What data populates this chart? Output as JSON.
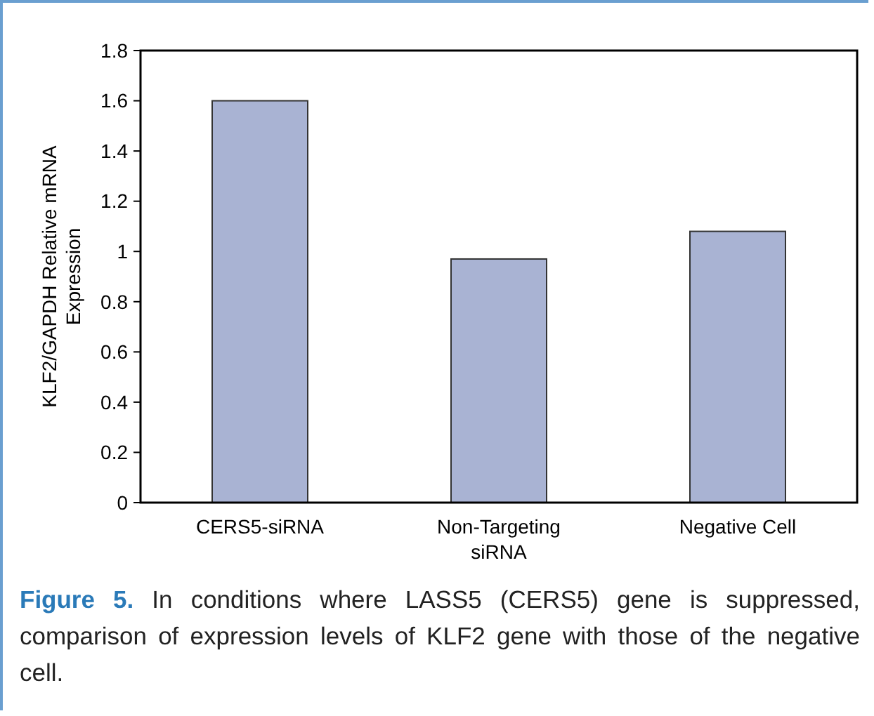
{
  "chart_data": {
    "type": "bar",
    "ylabel": "KLF2/GAPDH Relative mRNA Expression",
    "categories": [
      "CERS5-siRNA",
      "Non-Targeting siRNA",
      "Negative Cell"
    ],
    "values": [
      1.6,
      0.97,
      1.08
    ],
    "color": "#a9b3d3",
    "ylim": [
      0,
      1.8
    ],
    "yticks": [
      0,
      0.2,
      0.4,
      0.6,
      0.8,
      1,
      1.2,
      1.4,
      1.6,
      1.8
    ],
    "grid": false,
    "annotations": [
      "Figure 5.",
      "In conditions where LASS5 (CERS5) gene is suppressed, comparison of expression levels of KLF2 gene with those of the negative cell."
    ]
  }
}
